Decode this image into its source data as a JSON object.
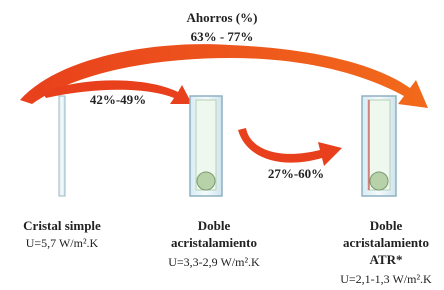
{
  "header": {
    "title": "Ahorros (%)",
    "range": "63% - 77%"
  },
  "arrows": [
    {
      "label": "42%-49%"
    },
    {
      "label": "27%-60%"
    }
  ],
  "items": [
    {
      "name_lines": [
        "Cristal simple"
      ],
      "u_value": "U=5,7 W/m².K"
    },
    {
      "name_lines": [
        "Doble",
        "acristalamiento"
      ],
      "u_value": "U=3,3-2,9 W/m².K"
    },
    {
      "name_lines": [
        "Doble",
        "acristalamiento",
        "ATR*"
      ],
      "u_value": "U=2,1-1,3 W/m².K"
    }
  ]
}
